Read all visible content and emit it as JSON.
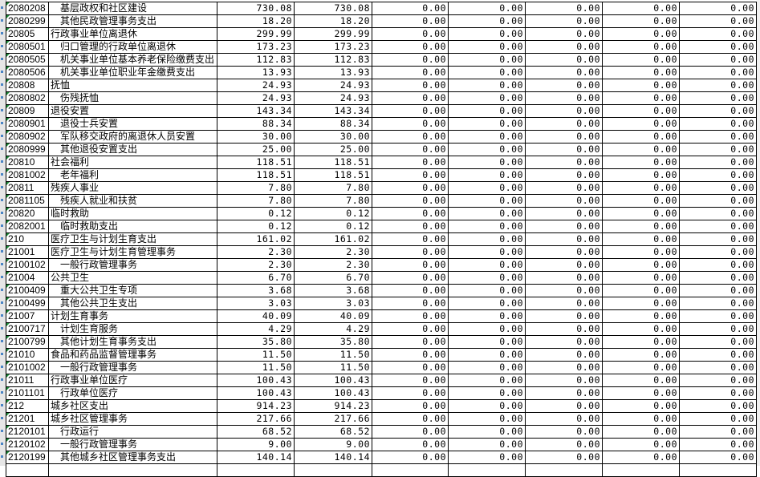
{
  "sheet": {
    "rows": [
      {
        "code": "2080208",
        "name": "基层政权和社区建设",
        "sub": true,
        "values": [
          "730.08",
          "730.08",
          "0.00",
          "0.00",
          "0.00",
          "0.00",
          "0.00"
        ]
      },
      {
        "code": "2080299",
        "name": "其他民政管理事务支出",
        "sub": true,
        "values": [
          "18.20",
          "18.20",
          "0.00",
          "0.00",
          "0.00",
          "0.00",
          "0.00"
        ]
      },
      {
        "code": "20805",
        "name": "行政事业单位离退休",
        "sub": false,
        "values": [
          "299.99",
          "299.99",
          "0.00",
          "0.00",
          "0.00",
          "0.00",
          "0.00"
        ]
      },
      {
        "code": "2080501",
        "name": "归口管理的行政单位离退休",
        "sub": true,
        "values": [
          "173.23",
          "173.23",
          "0.00",
          "0.00",
          "0.00",
          "0.00",
          "0.00"
        ]
      },
      {
        "code": "2080505",
        "name": "机关事业单位基本养老保险缴费支出",
        "sub": true,
        "values": [
          "112.83",
          "112.83",
          "0.00",
          "0.00",
          "0.00",
          "0.00",
          "0.00"
        ]
      },
      {
        "code": "2080506",
        "name": "机关事业单位职业年金缴费支出",
        "sub": true,
        "values": [
          "13.93",
          "13.93",
          "0.00",
          "0.00",
          "0.00",
          "0.00",
          "0.00"
        ]
      },
      {
        "code": "20808",
        "name": "抚恤",
        "sub": false,
        "values": [
          "24.93",
          "24.93",
          "0.00",
          "0.00",
          "0.00",
          "0.00",
          "0.00"
        ]
      },
      {
        "code": "2080802",
        "name": "伤残抚恤",
        "sub": true,
        "values": [
          "24.93",
          "24.93",
          "0.00",
          "0.00",
          "0.00",
          "0.00",
          "0.00"
        ]
      },
      {
        "code": "20809",
        "name": "退役安置",
        "sub": false,
        "values": [
          "143.34",
          "143.34",
          "0.00",
          "0.00",
          "0.00",
          "0.00",
          "0.00"
        ]
      },
      {
        "code": "2080901",
        "name": "退役士兵安置",
        "sub": true,
        "values": [
          "88.34",
          "88.34",
          "0.00",
          "0.00",
          "0.00",
          "0.00",
          "0.00"
        ]
      },
      {
        "code": "2080902",
        "name": "军队移交政府的离退休人员安置",
        "sub": true,
        "values": [
          "30.00",
          "30.00",
          "0.00",
          "0.00",
          "0.00",
          "0.00",
          "0.00"
        ]
      },
      {
        "code": "2080999",
        "name": "其他退役安置支出",
        "sub": true,
        "values": [
          "25.00",
          "25.00",
          "0.00",
          "0.00",
          "0.00",
          "0.00",
          "0.00"
        ]
      },
      {
        "code": "20810",
        "name": "社会福利",
        "sub": false,
        "values": [
          "118.51",
          "118.51",
          "0.00",
          "0.00",
          "0.00",
          "0.00",
          "0.00"
        ]
      },
      {
        "code": "2081002",
        "name": "老年福利",
        "sub": true,
        "values": [
          "118.51",
          "118.51",
          "0.00",
          "0.00",
          "0.00",
          "0.00",
          "0.00"
        ]
      },
      {
        "code": "20811",
        "name": "残疾人事业",
        "sub": false,
        "values": [
          "7.80",
          "7.80",
          "0.00",
          "0.00",
          "0.00",
          "0.00",
          "0.00"
        ]
      },
      {
        "code": "2081105",
        "name": "残疾人就业和扶贫",
        "sub": true,
        "values": [
          "7.80",
          "7.80",
          "0.00",
          "0.00",
          "0.00",
          "0.00",
          "0.00"
        ]
      },
      {
        "code": "20820",
        "name": "临时救助",
        "sub": false,
        "values": [
          "0.12",
          "0.12",
          "0.00",
          "0.00",
          "0.00",
          "0.00",
          "0.00"
        ]
      },
      {
        "code": "2082001",
        "name": "临时救助支出",
        "sub": true,
        "values": [
          "0.12",
          "0.12",
          "0.00",
          "0.00",
          "0.00",
          "0.00",
          "0.00"
        ]
      },
      {
        "code": "210",
        "name": "医疗卫生与计划生育支出",
        "sub": false,
        "values": [
          "161.02",
          "161.02",
          "0.00",
          "0.00",
          "0.00",
          "0.00",
          "0.00"
        ]
      },
      {
        "code": "21001",
        "name": "医疗卫生与计划生育管理事务",
        "sub": false,
        "values": [
          "2.30",
          "2.30",
          "0.00",
          "0.00",
          "0.00",
          "0.00",
          "0.00"
        ]
      },
      {
        "code": "2100102",
        "name": "一般行政管理事务",
        "sub": true,
        "values": [
          "2.30",
          "2.30",
          "0.00",
          "0.00",
          "0.00",
          "0.00",
          "0.00"
        ]
      },
      {
        "code": "21004",
        "name": "公共卫生",
        "sub": false,
        "values": [
          "6.70",
          "6.70",
          "0.00",
          "0.00",
          "0.00",
          "0.00",
          "0.00"
        ]
      },
      {
        "code": "2100409",
        "name": "重大公共卫生专项",
        "sub": true,
        "values": [
          "3.68",
          "3.68",
          "0.00",
          "0.00",
          "0.00",
          "0.00",
          "0.00"
        ]
      },
      {
        "code": "2100499",
        "name": "其他公共卫生支出",
        "sub": true,
        "values": [
          "3.03",
          "3.03",
          "0.00",
          "0.00",
          "0.00",
          "0.00",
          "0.00"
        ]
      },
      {
        "code": "21007",
        "name": "计划生育事务",
        "sub": false,
        "values": [
          "40.09",
          "40.09",
          "0.00",
          "0.00",
          "0.00",
          "0.00",
          "0.00"
        ]
      },
      {
        "code": "2100717",
        "name": "计划生育服务",
        "sub": true,
        "values": [
          "4.29",
          "4.29",
          "0.00",
          "0.00",
          "0.00",
          "0.00",
          "0.00"
        ]
      },
      {
        "code": "2100799",
        "name": "其他计划生育事务支出",
        "sub": true,
        "values": [
          "35.80",
          "35.80",
          "0.00",
          "0.00",
          "0.00",
          "0.00",
          "0.00"
        ]
      },
      {
        "code": "21010",
        "name": "食品和药品监督管理事务",
        "sub": false,
        "values": [
          "11.50",
          "11.50",
          "0.00",
          "0.00",
          "0.00",
          "0.00",
          "0.00"
        ]
      },
      {
        "code": "2101002",
        "name": "一般行政管理事务",
        "sub": true,
        "values": [
          "11.50",
          "11.50",
          "0.00",
          "0.00",
          "0.00",
          "0.00",
          "0.00"
        ]
      },
      {
        "code": "21011",
        "name": "行政事业单位医疗",
        "sub": false,
        "values": [
          "100.43",
          "100.43",
          "0.00",
          "0.00",
          "0.00",
          "0.00",
          "0.00"
        ]
      },
      {
        "code": "2101101",
        "name": "行政单位医疗",
        "sub": true,
        "values": [
          "100.43",
          "100.43",
          "0.00",
          "0.00",
          "0.00",
          "0.00",
          "0.00"
        ]
      },
      {
        "code": "212",
        "name": "城乡社区支出",
        "sub": false,
        "values": [
          "914.23",
          "914.23",
          "0.00",
          "0.00",
          "0.00",
          "0.00",
          "0.00"
        ]
      },
      {
        "code": "21201",
        "name": "城乡社区管理事务",
        "sub": false,
        "values": [
          "217.66",
          "217.66",
          "0.00",
          "0.00",
          "0.00",
          "0.00",
          "0.00"
        ]
      },
      {
        "code": "2120101",
        "name": "行政运行",
        "sub": true,
        "values": [
          "68.52",
          "68.52",
          "0.00",
          "0.00",
          "0.00",
          "0.00",
          "0.00"
        ]
      },
      {
        "code": "2120102",
        "name": "一般行政管理事务",
        "sub": true,
        "values": [
          "9.00",
          "9.00",
          "0.00",
          "0.00",
          "0.00",
          "0.00",
          "0.00"
        ]
      },
      {
        "code": "2120199",
        "name": "其他城乡社区管理事务支出",
        "sub": true,
        "values": [
          "140.14",
          "140.14",
          "0.00",
          "0.00",
          "0.00",
          "0.00",
          "0.00"
        ]
      }
    ]
  },
  "colors": {
    "grid_border": "#000000",
    "row_header": "#e6e6e6",
    "comment_marker": "#1e8c3a"
  }
}
